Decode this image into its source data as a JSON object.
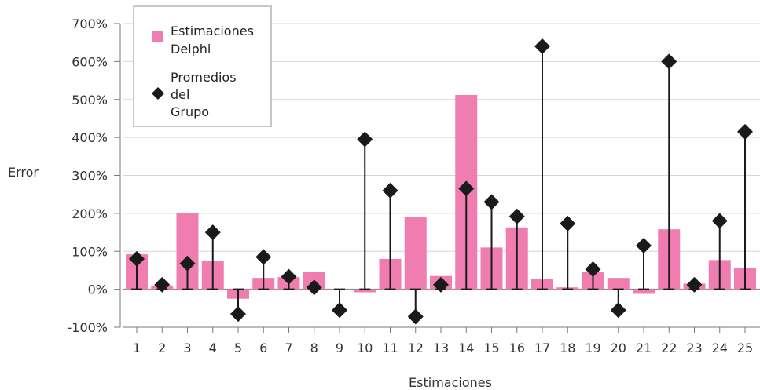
{
  "chart_data": {
    "type": "bar",
    "title": "",
    "xlabel": "Estimaciones",
    "ylabel": "Error",
    "ylim": [
      -100,
      700
    ],
    "y_ticks": [
      -100,
      0,
      100,
      200,
      300,
      400,
      500,
      600,
      700
    ],
    "y_tick_labels": [
      "-100%",
      "0%",
      "100%",
      "200%",
      "300%",
      "400%",
      "500%",
      "600%",
      "700%"
    ],
    "categories": [
      "1",
      "2",
      "3",
      "4",
      "5",
      "6",
      "7",
      "8",
      "9",
      "10",
      "11",
      "12",
      "13",
      "14",
      "15",
      "16",
      "17",
      "18",
      "19",
      "20",
      "21",
      "22",
      "23",
      "24",
      "25"
    ],
    "grid": true,
    "legend_position": "top-left",
    "series": [
      {
        "name": "Estimaciones Delphi",
        "legend_lines": [
          "Estimaciones",
          "Delphi"
        ],
        "type": "bar",
        "color": "#f07db0",
        "values": [
          92,
          10,
          200,
          75,
          -25,
          30,
          32,
          45,
          0,
          -8,
          80,
          190,
          35,
          512,
          110,
          163,
          28,
          5,
          45,
          30,
          -12,
          158,
          15,
          77,
          57
        ]
      },
      {
        "name": "Promedios del Grupo",
        "legend_lines": [
          "Promedios",
          "del",
          "Grupo"
        ],
        "type": "stem",
        "color": "#1a1a1a",
        "values": [
          80,
          12,
          68,
          150,
          -65,
          85,
          33,
          5,
          -55,
          395,
          260,
          -72,
          12,
          265,
          230,
          192,
          640,
          173,
          53,
          -55,
          115,
          600,
          12,
          180,
          415
        ]
      }
    ]
  }
}
